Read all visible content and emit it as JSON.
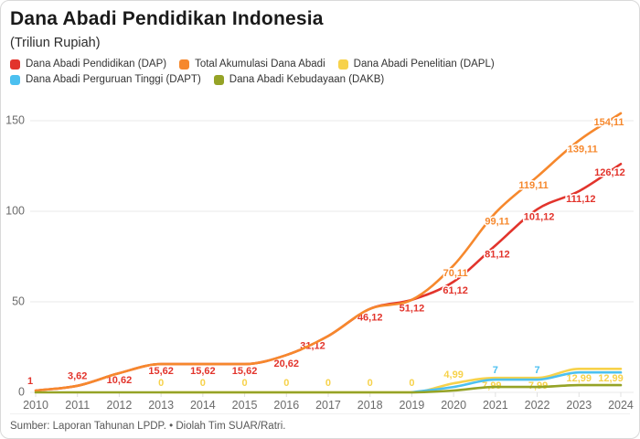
{
  "header": {
    "title": "Dana Abadi Pendidikan Indonesia",
    "subtitle": "(Triliun Rupiah)"
  },
  "footer": {
    "source": "Sumber: Laporan Tahunan LPDP. • Diolah Tim SUAR/Ratri."
  },
  "legend": [
    {
      "label": "Dana Abadi Pendidikan (DAP)",
      "color": "#e2342c"
    },
    {
      "label": "Total Akumulasi Dana Abadi",
      "color": "#f6882d"
    },
    {
      "label": "Dana Abadi Penelitian (DAPL)",
      "color": "#f7d24b"
    },
    {
      "label": "Dana Abadi Perguruan Tinggi (DAPT)",
      "color": "#4cc0f0"
    },
    {
      "label": "Dana Abadi Kebudayaan (DAKB)",
      "color": "#95a326"
    }
  ],
  "chart_data": {
    "type": "line",
    "title": "Dana Abadi Pendidikan Indonesia",
    "subtitle": "(Triliun Rupiah)",
    "x": [
      2010,
      2011,
      2012,
      2013,
      2014,
      2015,
      2016,
      2017,
      2018,
      2019,
      2020,
      2021,
      2022,
      2023,
      2024
    ],
    "ylim": [
      0,
      160
    ],
    "yticks": [
      0,
      50,
      100,
      150
    ],
    "grid": true,
    "legend_position": "top",
    "series": [
      {
        "name": "Dana Abadi Pendidikan (DAP)",
        "color": "#e2342c",
        "start_index": 0,
        "values": [
          1,
          3.62,
          10.62,
          15.62,
          15.62,
          15.62,
          20.62,
          31.12,
          46.12,
          51.12,
          61.12,
          81.12,
          101.12,
          111.12,
          126.12
        ],
        "labels": [
          "1",
          "3,62",
          "10,62",
          "15,62",
          "15,62",
          "15,62",
          "20,62",
          "31,12",
          "46,12",
          "51,12",
          "61,12",
          "81,12",
          "101,12",
          "111,12",
          "126,12"
        ]
      },
      {
        "name": "Total Akumulasi Dana Abadi",
        "color": "#f6882d",
        "start_index": 0,
        "values": [
          1,
          3.62,
          10.62,
          15.62,
          15.62,
          15.62,
          20.62,
          31.12,
          46.12,
          51.12,
          70.11,
          99.11,
          119.11,
          139.11,
          154.11
        ],
        "labels": [
          null,
          null,
          null,
          null,
          null,
          null,
          null,
          null,
          null,
          null,
          "70,11",
          "99,11",
          "119,11",
          "139,11",
          "154,11"
        ]
      },
      {
        "name": "Dana Abadi Penelitian (DAPL)",
        "color": "#f7d24b",
        "start_index": 3,
        "values": [
          0,
          0,
          0,
          0,
          0,
          0,
          0,
          4.99,
          7.99,
          7.99,
          12.99,
          12.99
        ],
        "labels": [
          "0",
          "0",
          "0",
          "0",
          "0",
          "0",
          "0",
          "4,99",
          "7,99",
          "7,99",
          "12,99",
          "12,99"
        ]
      },
      {
        "name": "Dana Abadi Perguruan Tinggi (DAPT)",
        "color": "#4cc0f0",
        "start_index": 9,
        "values": [
          0,
          3,
          7,
          7,
          11,
          11
        ],
        "labels": [
          null,
          null,
          "7",
          "7",
          null,
          null
        ]
      },
      {
        "name": "Dana Abadi Kebudayaan (DAKB)",
        "color": "#95a326",
        "start_index": 0,
        "values": [
          0,
          0,
          0,
          0,
          0,
          0,
          0,
          0,
          0,
          0,
          1,
          3,
          3,
          4,
          4
        ],
        "labels": [
          null,
          null,
          null,
          null,
          null,
          null,
          null,
          null,
          null,
          null,
          null,
          null,
          null,
          null,
          null
        ]
      }
    ]
  }
}
